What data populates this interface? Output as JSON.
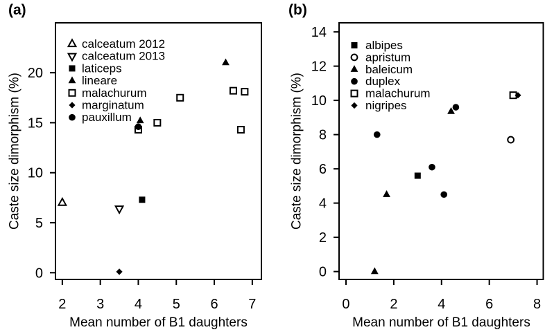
{
  "figure": {
    "background": "#ffffff",
    "ink_color": "#000000",
    "x_axis_label": "Mean number of B1 daughters",
    "y_axis_label": "Caste size dimorphism (%)"
  },
  "chart_data": [
    {
      "id": "a",
      "type": "scatter",
      "panel_label": "(a)",
      "xlabel": "Mean number of B1 daughters",
      "ylabel": "Caste size dimorphism (%)",
      "xlim": [
        1.82,
        7.24
      ],
      "ylim": [
        -0.67,
        24.99
      ],
      "x_ticks": [
        2,
        3,
        4,
        5,
        6,
        7
      ],
      "y_ticks": [
        0,
        5,
        10,
        15,
        20
      ],
      "grid": false,
      "legend_position": "top-left-inside",
      "series": [
        {
          "name": "calceatum 2012",
          "marker": "triangle-up-open",
          "points": [
            [
              2.0,
              7.0
            ]
          ]
        },
        {
          "name": "calceatum 2013",
          "marker": "triangle-down-open",
          "points": [
            [
              3.5,
              6.4
            ]
          ]
        },
        {
          "name": "laticeps",
          "marker": "square-filled",
          "points": [
            [
              4.1,
              7.3
            ]
          ]
        },
        {
          "name": "lineare",
          "marker": "triangle-up-filled",
          "points": [
            [
              4.05,
              15.2
            ],
            [
              6.3,
              21.0
            ]
          ]
        },
        {
          "name": "malachurum",
          "marker": "square-open",
          "points": [
            [
              4.0,
              14.3
            ],
            [
              4.5,
              15.0
            ],
            [
              5.1,
              17.5
            ],
            [
              6.5,
              18.2
            ],
            [
              6.8,
              18.1
            ],
            [
              6.7,
              14.3
            ]
          ]
        },
        {
          "name": "marginatum",
          "marker": "diamond-filled",
          "points": [
            [
              3.5,
              0.1
            ]
          ]
        },
        {
          "name": "pauxillum",
          "marker": "circle-filled",
          "points": [
            [
              4.0,
              14.6
            ]
          ]
        }
      ]
    },
    {
      "id": "b",
      "type": "scatter",
      "panel_label": "(b)",
      "xlabel": "Mean number of B1 daughters",
      "ylabel": "Caste size dimorphism (%)",
      "xlim": [
        -0.29,
        8.26
      ],
      "ylim": [
        -0.46,
        14.53
      ],
      "x_ticks": [
        0,
        2,
        4,
        6,
        8
      ],
      "y_ticks": [
        0,
        2,
        4,
        6,
        8,
        10,
        12,
        14
      ],
      "grid": false,
      "legend_position": "top-left-inside",
      "series": [
        {
          "name": "albipes",
          "marker": "square-filled",
          "points": [
            [
              3.0,
              5.6
            ]
          ]
        },
        {
          "name": "apristum",
          "marker": "circle-open",
          "points": [
            [
              6.9,
              7.7
            ]
          ]
        },
        {
          "name": "baleicum",
          "marker": "triangle-up-filled",
          "points": [
            [
              1.2,
              0.0
            ],
            [
              1.7,
              4.5
            ],
            [
              4.4,
              9.35
            ]
          ]
        },
        {
          "name": "duplex",
          "marker": "circle-filled",
          "points": [
            [
              1.3,
              8.0
            ],
            [
              3.6,
              6.1
            ],
            [
              4.1,
              4.5
            ],
            [
              4.6,
              9.6
            ]
          ]
        },
        {
          "name": "malachurum",
          "marker": "square-open",
          "points": [
            [
              7.0,
              10.3
            ]
          ]
        },
        {
          "name": "nigripes",
          "marker": "diamond-filled",
          "points": [
            [
              7.2,
              10.3
            ]
          ]
        }
      ]
    }
  ]
}
